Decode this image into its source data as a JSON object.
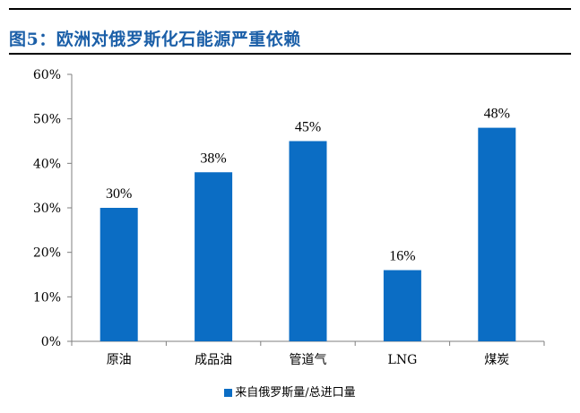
{
  "figure": {
    "title": "图5：欧洲对俄罗斯化石能源严重依赖"
  },
  "chart_data": {
    "type": "bar",
    "categories": [
      "原油",
      "成品油",
      "管道气",
      "LNG",
      "煤炭"
    ],
    "series": [
      {
        "name": "来自俄罗斯量/总进口量",
        "values": [
          30,
          38,
          45,
          16,
          48
        ],
        "value_labels": [
          "30%",
          "38%",
          "45%",
          "16%",
          "48%"
        ]
      }
    ],
    "ylim": [
      0,
      60
    ],
    "yticks": [
      0,
      10,
      20,
      30,
      40,
      50,
      60
    ],
    "ytick_labels": [
      "0%",
      "10%",
      "20%",
      "30%",
      "40%",
      "50%",
      "60%"
    ],
    "grid": false,
    "legend_position": "bottom",
    "bar_color": "#0b6dc4",
    "title_color": "#1b5fa8"
  }
}
